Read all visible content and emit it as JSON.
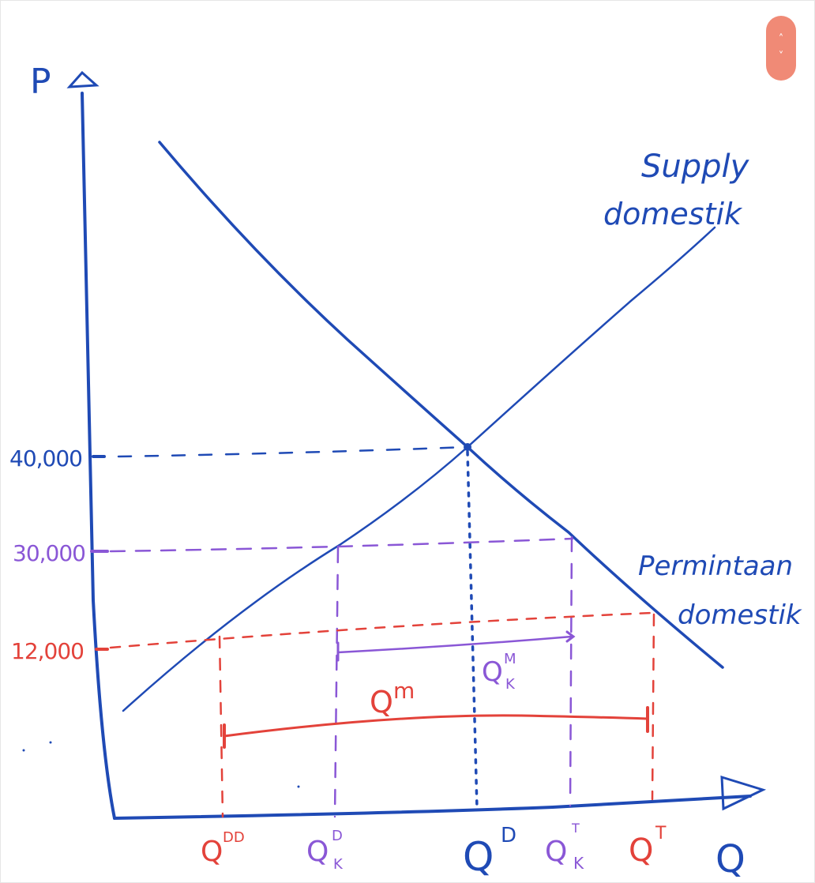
{
  "diagram": {
    "axis_p": "P",
    "axis_q": "Q",
    "supply_label_1": "Supply",
    "supply_label_2": "domestik",
    "demand_label_1": "Permintaan",
    "demand_label_2": "domestik",
    "price_40": "40,000",
    "price_30": "30,000",
    "price_12": "12,000",
    "qm_red": "Q",
    "qm_red_sup": "m",
    "qm_purple": "Q",
    "qm_purple_sup": "M",
    "qm_purple_sub": "K",
    "q_dd": "Q",
    "q_dd_sup": "DD",
    "q_dk": "Q",
    "q_dk_sup": "D",
    "q_dk_sub": "K",
    "q_d": "Q",
    "q_d_sup": "D",
    "q_tk": "Q",
    "q_tk_sup": "T",
    "q_tk_sub": "K",
    "q_t": "Q",
    "q_t_sup": "T"
  },
  "colors": {
    "blue": "#1f4ab5",
    "purple": "#8a57d6",
    "red": "#e3423a",
    "nav": "#f08a76"
  },
  "nav": {
    "up": "˄",
    "down": "˅"
  }
}
